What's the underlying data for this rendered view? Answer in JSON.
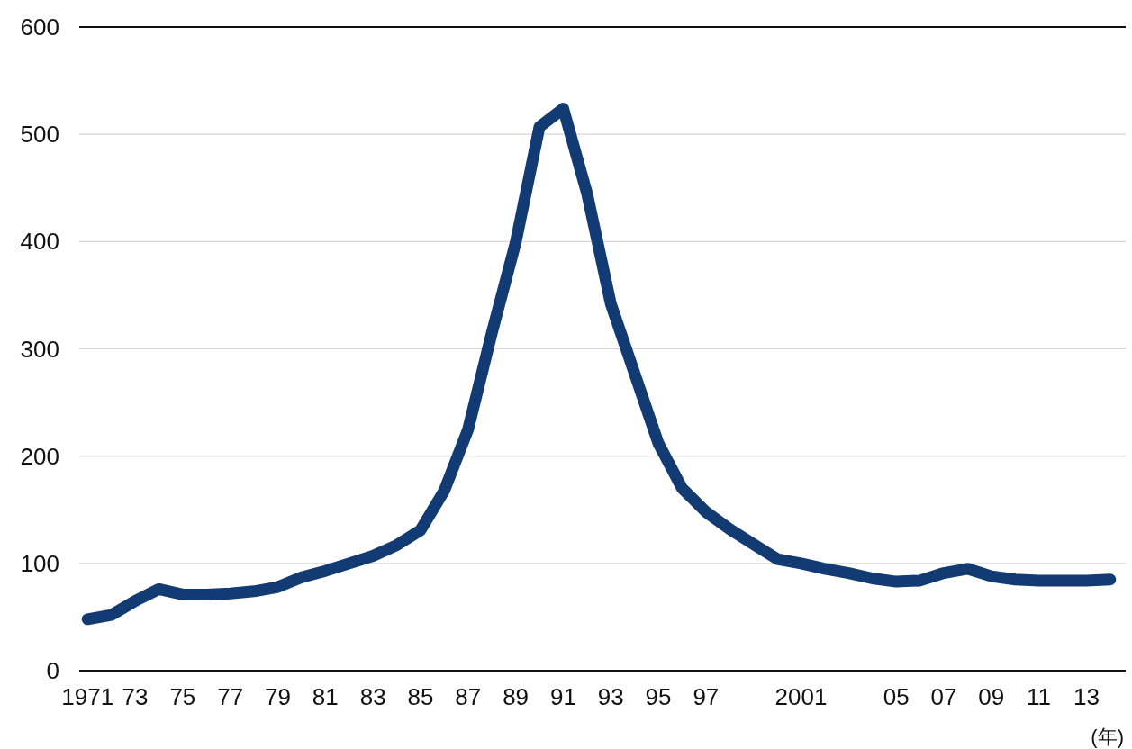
{
  "chart_data": {
    "type": "line",
    "xlabel": "(年)",
    "categories": [
      "1971",
      null,
      "73",
      null,
      "75",
      null,
      "77",
      null,
      "79",
      null,
      "81",
      null,
      "83",
      null,
      "85",
      null,
      "87",
      null,
      "89",
      null,
      "91",
      null,
      "93",
      null,
      "95",
      null,
      "97",
      null,
      null,
      null,
      "2001",
      null,
      null,
      null,
      "05",
      null,
      "07",
      null,
      "09",
      null,
      "11",
      null,
      "13",
      null
    ],
    "series": [
      {
        "color": "#123a73",
        "values": [
          48,
          52,
          65,
          76,
          71,
          71,
          72,
          74,
          78,
          87,
          93,
          100,
          107,
          117,
          131,
          168,
          225,
          315,
          399,
          507,
          524,
          445,
          342,
          277,
          212,
          170,
          148,
          132,
          118,
          104,
          100,
          95,
          91,
          86,
          83,
          84,
          91,
          95,
          88,
          85,
          84,
          84,
          84,
          85
        ]
      }
    ],
    "ylim": [
      0,
      600
    ],
    "yticks": [
      0,
      100,
      200,
      300,
      400,
      500,
      600
    ],
    "grid": "y"
  }
}
